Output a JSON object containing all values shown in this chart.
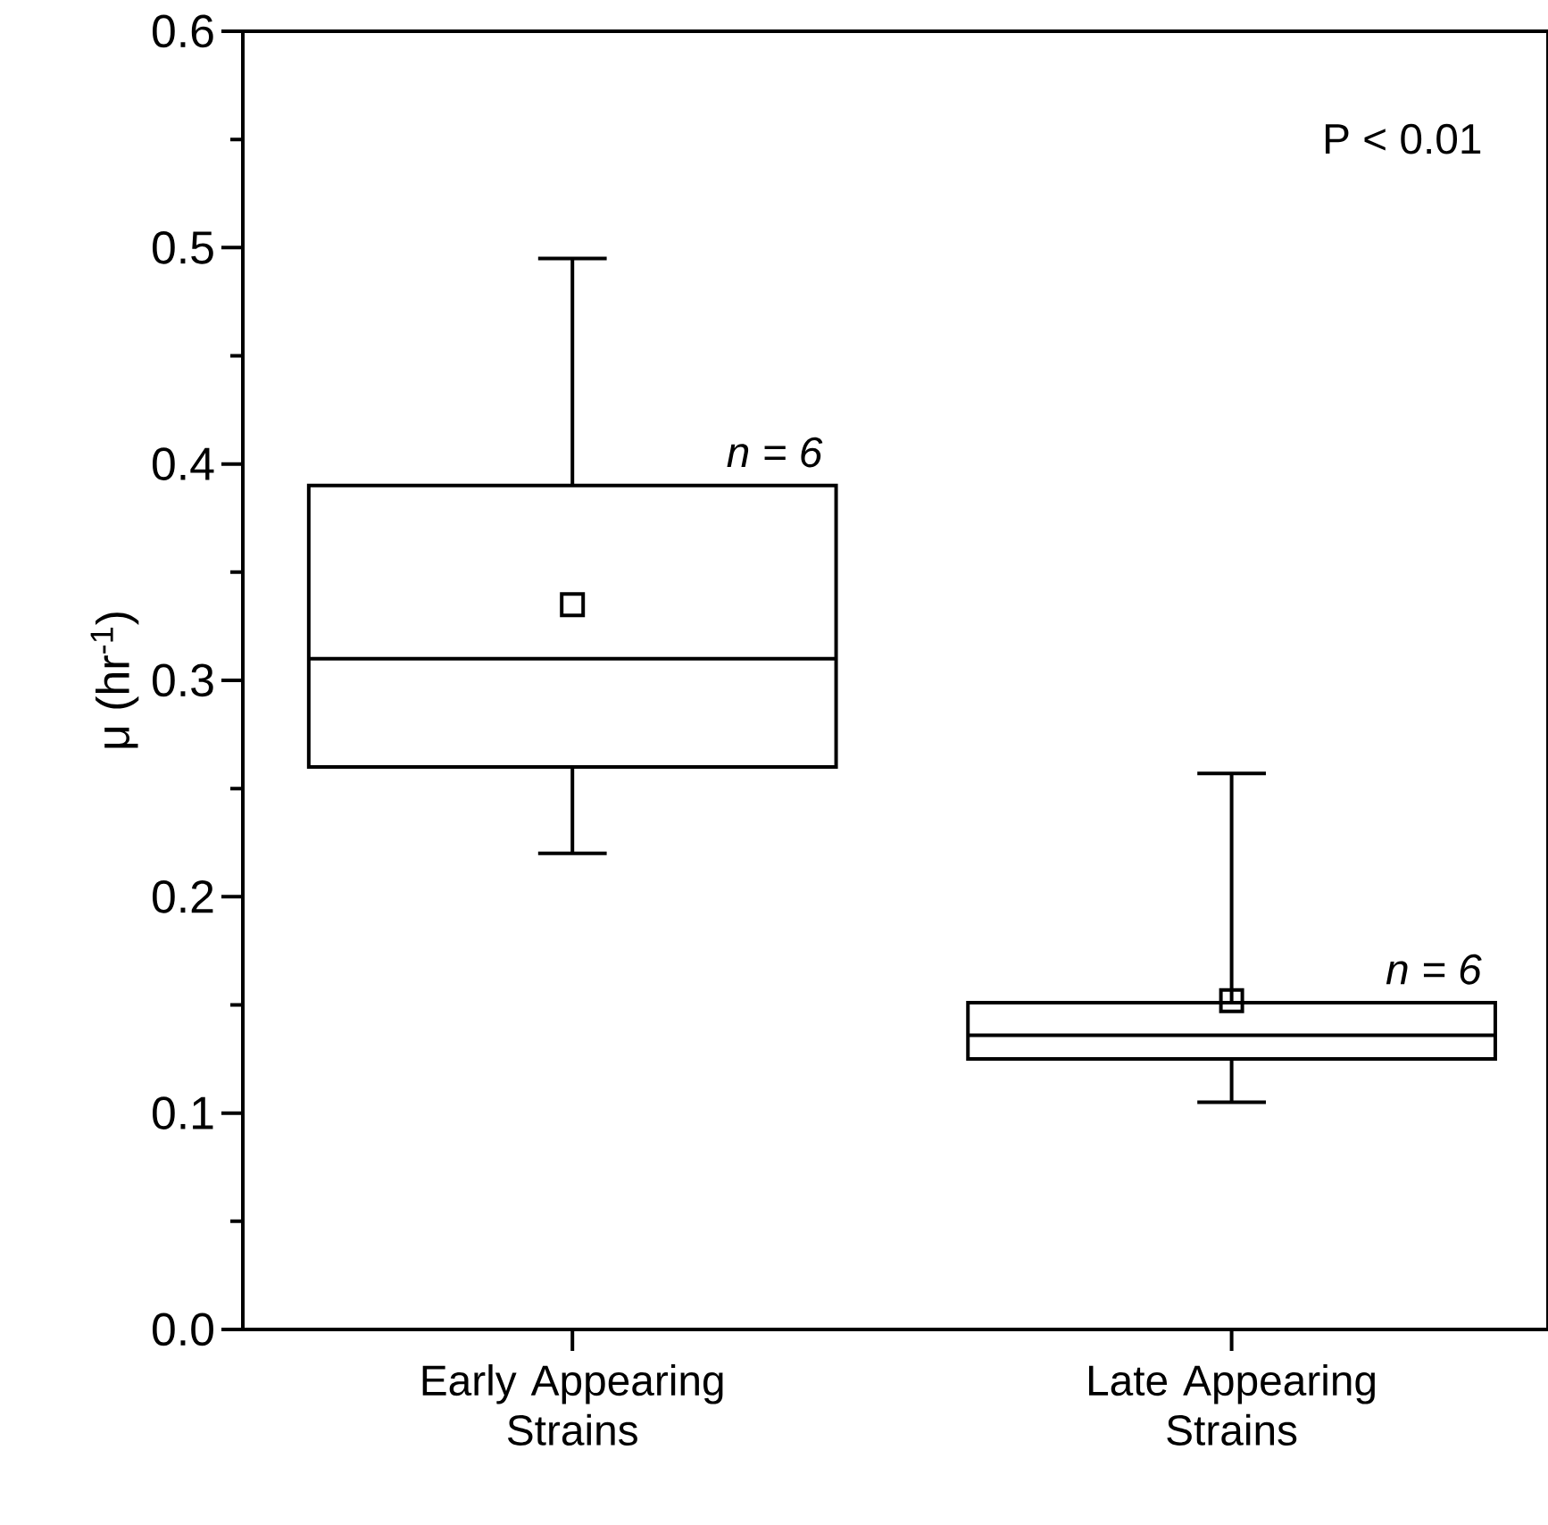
{
  "chart_data": {
    "type": "box",
    "categories": [
      "Early Appearing Strains",
      "Late Appearing Strains"
    ],
    "ylabel": "μ (hr$^{-1}$)",
    "ylim": [
      0,
      0.6
    ],
    "yticks": [
      {
        "value": 0,
        "label": "0.0"
      },
      {
        "value": 0.05,
        "label": null
      },
      0.1,
      {
        "value": 0.15,
        "label": null
      },
      0.2,
      {
        "value": 0.25,
        "label": null
      },
      0.3,
      {
        "value": 0.35,
        "label": null
      },
      0.4,
      {
        "value": 0.45,
        "label": null
      },
      0.5,
      {
        "value": 0.55,
        "label": null
      },
      0.6
    ],
    "boxes": [
      {
        "low": 0.22,
        "q1": 0.26,
        "median": 0.31,
        "q3": 0.39,
        "high": 0.495,
        "mean": 0.335
      },
      {
        "low": 0.105,
        "q1": 0.125,
        "median": 0.136,
        "q3": 0.151,
        "high": 0.257,
        "mean": 0.152
      }
    ],
    "marker": "square",
    "annotations": [
      "P < 0.01",
      "n = 6",
      "n = 6"
    ]
  }
}
